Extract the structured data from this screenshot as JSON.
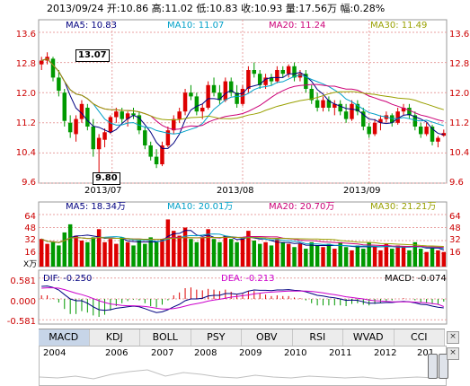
{
  "header": {
    "date": "2013/09/24",
    "open_label": "开:",
    "open": "10.86",
    "high_label": "高:",
    "high": "11.02",
    "low_label": "低:",
    "low": "10.83",
    "close_label": "收:",
    "close": "10.93",
    "volume_label": "量:",
    "volume": "17.56万",
    "change_label": "幅:",
    "change": "0.28%"
  },
  "colors": {
    "up": "#dd0000",
    "down": "#009900",
    "ma5": "#000080",
    "ma10": "#00a0c8",
    "ma20": "#cc0077",
    "ma30": "#99a000",
    "grid": "#e8a0a0",
    "axis_text": "#cc0000"
  },
  "chart_data": [
    {
      "type": "candlestick",
      "title": "",
      "legend": [
        {
          "label": "MA5: 10.83",
          "color": "#000080"
        },
        {
          "label": "MA10: 11.07",
          "color": "#00a0c8"
        },
        {
          "label": "MA20: 11.24",
          "color": "#cc0077"
        },
        {
          "label": "MA30: 11.49",
          "color": "#99a000"
        }
      ],
      "yticks": [
        "13.6",
        "12.8",
        "12.0",
        "11.2",
        "10.4",
        "9.6"
      ],
      "ylim": [
        9.6,
        13.6
      ],
      "xticks": [
        "2013/07",
        "2013/08",
        "2013/09"
      ],
      "annotations": [
        {
          "text": "13.07",
          "at_index": 1
        },
        {
          "text": "9.80",
          "at_index": 10
        }
      ],
      "ohlc": [
        [
          12.75,
          12.95,
          12.6,
          12.85
        ],
        [
          12.85,
          13.07,
          12.75,
          12.95
        ],
        [
          12.9,
          12.95,
          12.3,
          12.4
        ],
        [
          12.4,
          12.6,
          11.9,
          12.05
        ],
        [
          12.0,
          12.1,
          11.1,
          11.25
        ],
        [
          11.2,
          11.4,
          10.8,
          10.95
        ],
        [
          10.9,
          11.4,
          10.7,
          11.3
        ],
        [
          11.3,
          11.8,
          11.2,
          11.7
        ],
        [
          11.6,
          11.7,
          11.0,
          11.1
        ],
        [
          11.1,
          11.3,
          10.3,
          10.5
        ],
        [
          10.5,
          10.9,
          9.8,
          10.8
        ],
        [
          10.75,
          11.05,
          10.55,
          10.95
        ],
        [
          10.95,
          11.4,
          10.9,
          11.35
        ],
        [
          11.35,
          11.6,
          11.2,
          11.5
        ],
        [
          11.5,
          11.6,
          11.2,
          11.3
        ],
        [
          11.3,
          11.5,
          11.1,
          11.45
        ],
        [
          11.45,
          11.6,
          11.3,
          11.4
        ],
        [
          11.4,
          11.5,
          10.9,
          11.0
        ],
        [
          11.0,
          11.1,
          10.5,
          10.6
        ],
        [
          10.6,
          10.7,
          10.2,
          10.3
        ],
        [
          10.3,
          10.5,
          10.0,
          10.1
        ],
        [
          10.1,
          10.7,
          10.05,
          10.6
        ],
        [
          10.6,
          11.1,
          10.55,
          11.0
        ],
        [
          11.0,
          11.4,
          10.9,
          11.3
        ],
        [
          11.3,
          11.6,
          11.2,
          11.5
        ],
        [
          11.5,
          12.1,
          11.4,
          12.0
        ],
        [
          12.0,
          12.2,
          11.8,
          11.9
        ],
        [
          11.9,
          12.0,
          11.4,
          11.5
        ],
        [
          11.5,
          11.7,
          11.3,
          11.6
        ],
        [
          11.6,
          12.3,
          11.55,
          12.2
        ],
        [
          12.2,
          12.4,
          11.9,
          12.0
        ],
        [
          12.0,
          12.2,
          11.7,
          11.8
        ],
        [
          11.8,
          12.4,
          11.75,
          12.3
        ],
        [
          12.3,
          12.4,
          11.9,
          12.0
        ],
        [
          12.0,
          12.2,
          11.6,
          11.7
        ],
        [
          11.7,
          12.2,
          11.65,
          12.1
        ],
        [
          12.1,
          12.7,
          12.0,
          12.6
        ],
        [
          12.6,
          12.8,
          12.4,
          12.5
        ],
        [
          12.5,
          12.6,
          12.1,
          12.2
        ],
        [
          12.2,
          12.5,
          12.1,
          12.4
        ],
        [
          12.4,
          12.5,
          12.2,
          12.3
        ],
        [
          12.3,
          12.7,
          12.25,
          12.6
        ],
        [
          12.6,
          12.7,
          12.4,
          12.5
        ],
        [
          12.5,
          12.75,
          12.4,
          12.7
        ],
        [
          12.7,
          12.8,
          12.3,
          12.4
        ],
        [
          12.4,
          12.6,
          12.3,
          12.5
        ],
        [
          12.5,
          12.6,
          12.0,
          12.1
        ],
        [
          12.1,
          12.2,
          11.7,
          11.8
        ],
        [
          11.8,
          12.0,
          11.5,
          11.6
        ],
        [
          11.6,
          11.9,
          11.5,
          11.8
        ],
        [
          11.8,
          11.9,
          11.5,
          11.6
        ],
        [
          11.6,
          11.8,
          11.4,
          11.7
        ],
        [
          11.7,
          11.8,
          11.4,
          11.5
        ],
        [
          11.5,
          11.7,
          11.2,
          11.3
        ],
        [
          11.3,
          11.8,
          11.25,
          11.7
        ],
        [
          11.7,
          11.8,
          11.4,
          11.5
        ],
        [
          11.5,
          11.6,
          11.0,
          11.1
        ],
        [
          11.1,
          11.2,
          10.8,
          10.9
        ],
        [
          10.9,
          11.3,
          10.85,
          11.2
        ],
        [
          11.2,
          11.4,
          11.0,
          11.3
        ],
        [
          11.3,
          11.5,
          11.2,
          11.4
        ],
        [
          11.4,
          11.45,
          11.1,
          11.2
        ],
        [
          11.2,
          11.6,
          11.15,
          11.5
        ],
        [
          11.5,
          11.7,
          11.4,
          11.6
        ],
        [
          11.6,
          11.7,
          11.3,
          11.4
        ],
        [
          11.4,
          11.5,
          11.0,
          11.1
        ],
        [
          11.1,
          11.2,
          10.8,
          10.9
        ],
        [
          10.9,
          11.2,
          10.85,
          11.1
        ],
        [
          11.1,
          11.15,
          10.6,
          10.7
        ],
        [
          10.7,
          10.85,
          10.55,
          10.8
        ],
        [
          10.86,
          11.02,
          10.83,
          10.93
        ]
      ]
    },
    {
      "type": "bar",
      "title": "",
      "legend": [
        {
          "label": "MA5: 18.34万",
          "color": "#000080"
        },
        {
          "label": "MA10: 20.01万",
          "color": "#00a0c8"
        },
        {
          "label": "MA20: 20.70万",
          "color": "#cc0077"
        },
        {
          "label": "MA30: 21.21万",
          "color": "#99a000"
        }
      ],
      "unit": "X万",
      "yticks": [
        "64",
        "48",
        "32",
        "16"
      ],
      "ylim": [
        0,
        64
      ],
      "values": [
        34,
        28,
        30,
        26,
        42,
        52,
        38,
        32,
        30,
        36,
        46,
        30,
        34,
        28,
        36,
        30,
        26,
        32,
        28,
        36,
        30,
        34,
        58,
        44,
        38,
        48,
        34,
        30,
        36,
        46,
        34,
        30,
        38,
        34,
        30,
        36,
        44,
        32,
        28,
        30,
        26,
        34,
        30,
        28,
        24,
        28,
        22,
        30,
        26,
        24,
        28,
        22,
        30,
        24,
        20,
        26,
        22,
        30,
        24,
        20,
        28,
        22,
        26,
        24,
        20,
        30,
        22,
        18,
        24,
        20,
        18
      ]
    },
    {
      "type": "line",
      "title": "",
      "legend": [
        {
          "label": "DIF: -0.250",
          "color": "#000080"
        },
        {
          "label": "DEA: -0.213",
          "color": "#cc00cc"
        },
        {
          "label": "MACD: -0.074",
          "color": "#000000"
        }
      ],
      "yticks": [
        "0.581",
        "0.000",
        "-0.581"
      ],
      "ylim": [
        -0.7,
        0.7
      ],
      "dif": [
        0.35,
        0.36,
        0.32,
        0.25,
        0.12,
        0.0,
        -0.05,
        -0.05,
        -0.12,
        -0.22,
        -0.3,
        -0.32,
        -0.3,
        -0.26,
        -0.24,
        -0.22,
        -0.2,
        -0.22,
        -0.27,
        -0.33,
        -0.38,
        -0.36,
        -0.3,
        -0.22,
        -0.15,
        -0.05,
        0.0,
        0.0,
        0.02,
        0.08,
        0.1,
        0.1,
        0.15,
        0.15,
        0.13,
        0.16,
        0.22,
        0.25,
        0.24,
        0.24,
        0.23,
        0.25,
        0.25,
        0.26,
        0.24,
        0.23,
        0.2,
        0.15,
        0.1,
        0.08,
        0.05,
        0.03,
        0.0,
        -0.04,
        -0.03,
        -0.04,
        -0.08,
        -0.12,
        -0.12,
        -0.11,
        -0.1,
        -0.1,
        -0.08,
        -0.07,
        -0.08,
        -0.11,
        -0.15,
        -0.16,
        -0.2,
        -0.23,
        -0.25
      ],
      "dea": [
        0.3,
        0.31,
        0.31,
        0.3,
        0.26,
        0.21,
        0.16,
        0.12,
        0.07,
        0.01,
        -0.05,
        -0.1,
        -0.14,
        -0.16,
        -0.18,
        -0.19,
        -0.19,
        -0.2,
        -0.21,
        -0.23,
        -0.26,
        -0.28,
        -0.28,
        -0.27,
        -0.24,
        -0.2,
        -0.16,
        -0.13,
        -0.1,
        -0.06,
        -0.03,
        -0.01,
        0.02,
        0.05,
        0.07,
        0.09,
        0.11,
        0.14,
        0.16,
        0.18,
        0.19,
        0.2,
        0.21,
        0.22,
        0.22,
        0.22,
        0.22,
        0.21,
        0.19,
        0.17,
        0.14,
        0.12,
        0.09,
        0.06,
        0.04,
        0.02,
        0.0,
        -0.03,
        -0.05,
        -0.06,
        -0.07,
        -0.08,
        -0.08,
        -0.08,
        -0.08,
        -0.09,
        -0.1,
        -0.11,
        -0.13,
        -0.15,
        -0.213
      ]
    }
  ],
  "tabs": [
    {
      "label": "MACD",
      "active": true
    },
    {
      "label": "KDJ"
    },
    {
      "label": "BOLL"
    },
    {
      "label": "PSY"
    },
    {
      "label": "OBV"
    },
    {
      "label": "RSI"
    },
    {
      "label": "WVAD"
    },
    {
      "label": "CCI"
    }
  ],
  "navigator": {
    "years": [
      "2004",
      "2006",
      "2007",
      "2008",
      "2009",
      "2010",
      "2011",
      "2012",
      "201"
    ]
  }
}
